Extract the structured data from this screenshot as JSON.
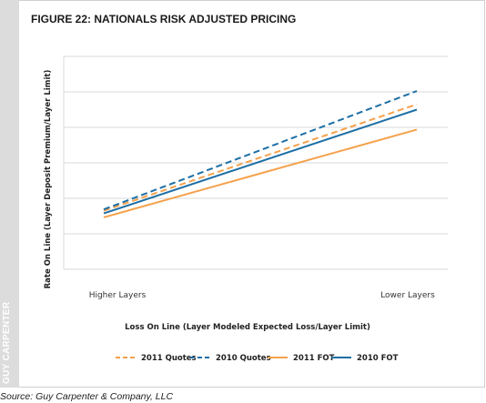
{
  "side_label": "GUY CARPENTER",
  "title": "FIGURE 22: NATIONALS RISK ADJUSTED PRICING",
  "source": "Source: Guy Carpenter & Company, LLC",
  "chart_data": {
    "type": "line",
    "title": "FIGURE 22: NATIONALS RISK ADJUSTED PRICING",
    "xlabel": "Loss On Line (Layer Modeled Expected Loss/Layer Limit)",
    "ylabel": "Rate On Line (Layer Deposit Premium/Layer Limit)",
    "x_tick_labels": [
      "Higher Layers",
      "Lower Layers"
    ],
    "x": [
      0,
      1
    ],
    "ylim": [
      0,
      8
    ],
    "y_ticks_labeled": false,
    "grid": "horizontal",
    "legend_position": "bottom",
    "series": [
      {
        "name": "2011 Quotes",
        "values": [
          2.2,
          6.2
        ],
        "color": "#F5A14B",
        "style": "dashed"
      },
      {
        "name": "2010 Quotes",
        "values": [
          2.25,
          6.7
        ],
        "color": "#1D6FA5",
        "style": "dashed"
      },
      {
        "name": "2011 FOT",
        "values": [
          1.95,
          5.25
        ],
        "color": "#F5A14B",
        "style": "solid"
      },
      {
        "name": "2010 FOT",
        "values": [
          2.1,
          6.0
        ],
        "color": "#1D6FA5",
        "style": "solid"
      }
    ]
  }
}
